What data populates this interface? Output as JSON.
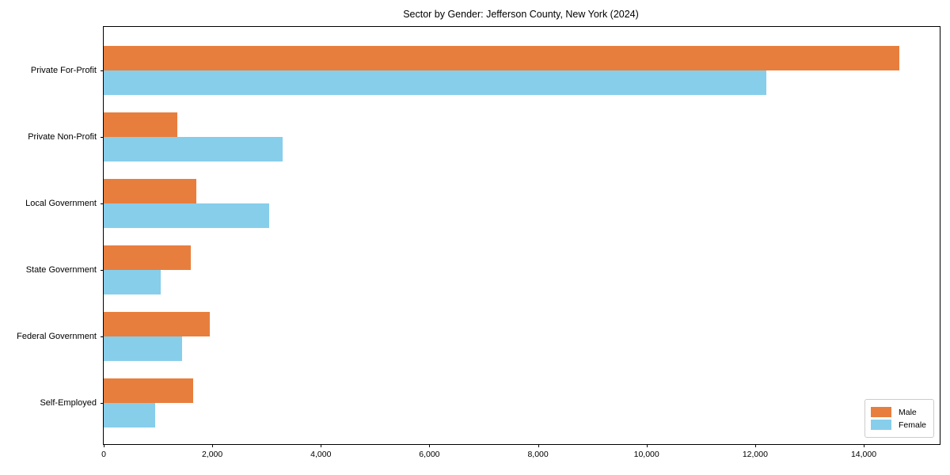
{
  "chart_data": {
    "type": "bar",
    "orientation": "horizontal",
    "title": "Sector by Gender: Jefferson County, New York (2024)",
    "categories": [
      "Private For-Profit",
      "Private Non-Profit",
      "Local Government",
      "State Government",
      "Federal Government",
      "Self-Employed"
    ],
    "series": [
      {
        "name": "Male",
        "color": "#e87e3d",
        "values": [
          14650,
          1350,
          1700,
          1600,
          1950,
          1650
        ]
      },
      {
        "name": "Female",
        "color": "#87ceeb",
        "values": [
          12200,
          3300,
          3050,
          1050,
          1450,
          950
        ]
      }
    ],
    "xlabel": "",
    "ylabel": "",
    "xlim": [
      0,
      15400
    ],
    "xticks": [
      0,
      2000,
      4000,
      6000,
      8000,
      10000,
      12000,
      14000
    ],
    "xtick_labels": [
      "0",
      "2,000",
      "4,000",
      "6,000",
      "8,000",
      "10,000",
      "12,000",
      "14,000"
    ],
    "grid": false,
    "legend": {
      "position": "lower right",
      "entries": [
        "Male",
        "Female"
      ]
    },
    "colors": {
      "male": "#e87e3d",
      "female": "#87ceeb",
      "spine": "#000000",
      "background": "#ffffff",
      "legend_border": "#cccccc"
    }
  }
}
